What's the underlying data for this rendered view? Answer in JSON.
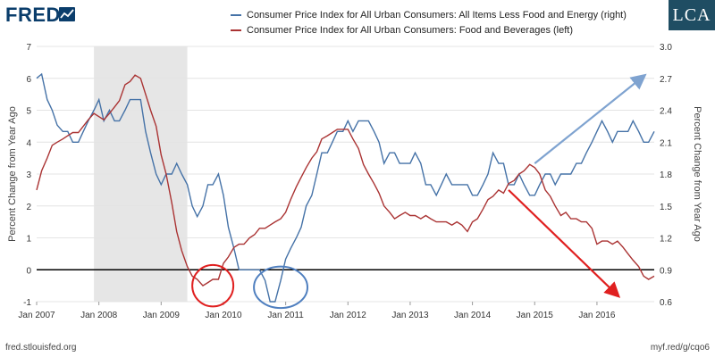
{
  "header": {
    "logo": "FRED",
    "logo_icon": "fred-chart-icon",
    "brand_badge": "LCA"
  },
  "footer": {
    "source": "fred.stlouisfed.org",
    "link": "myf.red/g/cqo6"
  },
  "chart_data": {
    "type": "line",
    "xlabel": "",
    "ylabel_left": "Percent Change from Year Ago",
    "ylabel_right": "Percent Change from Year Ago",
    "ylim_left": [
      -1,
      7
    ],
    "ylim_right": [
      0.6,
      3.0
    ],
    "yticks_left": [
      -1,
      0,
      1,
      2,
      3,
      4,
      5,
      6,
      7
    ],
    "yticks_right": [
      0.6,
      0.9,
      1.2,
      1.5,
      1.8,
      2.1,
      2.4,
      2.7,
      3.0
    ],
    "xlim": [
      2007.0,
      2016.92
    ],
    "xticks": [
      {
        "x": 2007.0,
        "label": "Jan 2007"
      },
      {
        "x": 2008.0,
        "label": "Jan 2008"
      },
      {
        "x": 2009.0,
        "label": "Jan 2009"
      },
      {
        "x": 2010.0,
        "label": "Jan 2010"
      },
      {
        "x": 2011.0,
        "label": "Jan 2011"
      },
      {
        "x": 2012.0,
        "label": "Jan 2012"
      },
      {
        "x": 2013.0,
        "label": "Jan 2013"
      },
      {
        "x": 2014.0,
        "label": "Jan 2014"
      },
      {
        "x": 2015.0,
        "label": "Jan 2015"
      },
      {
        "x": 2016.0,
        "label": "Jan 2016"
      }
    ],
    "recession": [
      2007.92,
      2009.42
    ],
    "zero_line": 0,
    "grid": "horizontal",
    "legend_position": "top",
    "series": [
      {
        "name": "Consumer Price Index for All Urban Consumers: All Items Less Food and Energy (right)",
        "axis": "right",
        "color": "#4572a7",
        "points": [
          [
            2007.0,
            2.7
          ],
          [
            2007.08,
            2.74
          ],
          [
            2007.17,
            2.5
          ],
          [
            2007.25,
            2.4
          ],
          [
            2007.33,
            2.26
          ],
          [
            2007.42,
            2.2
          ],
          [
            2007.5,
            2.2
          ],
          [
            2007.58,
            2.1
          ],
          [
            2007.67,
            2.1
          ],
          [
            2007.75,
            2.2
          ],
          [
            2007.83,
            2.3
          ],
          [
            2007.92,
            2.4
          ],
          [
            2008.0,
            2.5
          ],
          [
            2008.08,
            2.3
          ],
          [
            2008.17,
            2.4
          ],
          [
            2008.25,
            2.3
          ],
          [
            2008.33,
            2.3
          ],
          [
            2008.42,
            2.4
          ],
          [
            2008.5,
            2.5
          ],
          [
            2008.58,
            2.5
          ],
          [
            2008.67,
            2.5
          ],
          [
            2008.75,
            2.2
          ],
          [
            2008.83,
            2.0
          ],
          [
            2008.92,
            1.8
          ],
          [
            2009.0,
            1.7
          ],
          [
            2009.08,
            1.8
          ],
          [
            2009.17,
            1.8
          ],
          [
            2009.25,
            1.9
          ],
          [
            2009.33,
            1.8
          ],
          [
            2009.42,
            1.7
          ],
          [
            2009.5,
            1.5
          ],
          [
            2009.58,
            1.4
          ],
          [
            2009.67,
            1.5
          ],
          [
            2009.75,
            1.7
          ],
          [
            2009.83,
            1.7
          ],
          [
            2009.92,
            1.8
          ],
          [
            2010.0,
            1.6
          ],
          [
            2010.08,
            1.3
          ],
          [
            2010.17,
            1.1
          ],
          [
            2010.25,
            0.9
          ],
          [
            2010.33,
            0.9
          ],
          [
            2010.42,
            0.9
          ],
          [
            2010.5,
            0.9
          ],
          [
            2010.58,
            0.9
          ],
          [
            2010.67,
            0.8
          ],
          [
            2010.75,
            0.6
          ],
          [
            2010.83,
            0.6
          ],
          [
            2010.92,
            0.8
          ],
          [
            2011.0,
            1.0
          ],
          [
            2011.08,
            1.1
          ],
          [
            2011.17,
            1.2
          ],
          [
            2011.25,
            1.3
          ],
          [
            2011.33,
            1.5
          ],
          [
            2011.42,
            1.6
          ],
          [
            2011.5,
            1.8
          ],
          [
            2011.58,
            2.0
          ],
          [
            2011.67,
            2.0
          ],
          [
            2011.75,
            2.1
          ],
          [
            2011.83,
            2.2
          ],
          [
            2011.92,
            2.2
          ],
          [
            2012.0,
            2.3
          ],
          [
            2012.08,
            2.2
          ],
          [
            2012.17,
            2.3
          ],
          [
            2012.25,
            2.3
          ],
          [
            2012.33,
            2.3
          ],
          [
            2012.42,
            2.2
          ],
          [
            2012.5,
            2.1
          ],
          [
            2012.58,
            1.9
          ],
          [
            2012.67,
            2.0
          ],
          [
            2012.75,
            2.0
          ],
          [
            2012.83,
            1.9
          ],
          [
            2012.92,
            1.9
          ],
          [
            2013.0,
            1.9
          ],
          [
            2013.08,
            2.0
          ],
          [
            2013.17,
            1.9
          ],
          [
            2013.25,
            1.7
          ],
          [
            2013.33,
            1.7
          ],
          [
            2013.42,
            1.6
          ],
          [
            2013.5,
            1.7
          ],
          [
            2013.58,
            1.8
          ],
          [
            2013.67,
            1.7
          ],
          [
            2013.75,
            1.7
          ],
          [
            2013.83,
            1.7
          ],
          [
            2013.92,
            1.7
          ],
          [
            2014.0,
            1.6
          ],
          [
            2014.08,
            1.6
          ],
          [
            2014.17,
            1.7
          ],
          [
            2014.25,
            1.8
          ],
          [
            2014.33,
            2.0
          ],
          [
            2014.42,
            1.9
          ],
          [
            2014.5,
            1.9
          ],
          [
            2014.58,
            1.7
          ],
          [
            2014.67,
            1.7
          ],
          [
            2014.75,
            1.8
          ],
          [
            2014.83,
            1.7
          ],
          [
            2014.92,
            1.6
          ],
          [
            2015.0,
            1.6
          ],
          [
            2015.08,
            1.7
          ],
          [
            2015.17,
            1.8
          ],
          [
            2015.25,
            1.8
          ],
          [
            2015.33,
            1.7
          ],
          [
            2015.42,
            1.8
          ],
          [
            2015.5,
            1.8
          ],
          [
            2015.58,
            1.8
          ],
          [
            2015.67,
            1.9
          ],
          [
            2015.75,
            1.9
          ],
          [
            2015.83,
            2.0
          ],
          [
            2015.92,
            2.1
          ],
          [
            2016.0,
            2.2
          ],
          [
            2016.08,
            2.3
          ],
          [
            2016.17,
            2.2
          ],
          [
            2016.25,
            2.1
          ],
          [
            2016.33,
            2.2
          ],
          [
            2016.42,
            2.2
          ],
          [
            2016.5,
            2.2
          ],
          [
            2016.58,
            2.3
          ],
          [
            2016.67,
            2.2
          ],
          [
            2016.75,
            2.1
          ],
          [
            2016.83,
            2.1
          ],
          [
            2016.92,
            2.2
          ]
        ]
      },
      {
        "name": "Consumer Price Index for All Urban Consumers: Food and Beverages (left)",
        "axis": "left",
        "color": "#aa3333",
        "points": [
          [
            2007.0,
            2.5
          ],
          [
            2007.08,
            3.1
          ],
          [
            2007.17,
            3.5
          ],
          [
            2007.25,
            3.9
          ],
          [
            2007.33,
            4.0
          ],
          [
            2007.42,
            4.1
          ],
          [
            2007.5,
            4.2
          ],
          [
            2007.58,
            4.3
          ],
          [
            2007.67,
            4.3
          ],
          [
            2007.75,
            4.5
          ],
          [
            2007.83,
            4.7
          ],
          [
            2007.92,
            4.9
          ],
          [
            2008.0,
            4.8
          ],
          [
            2008.08,
            4.7
          ],
          [
            2008.17,
            4.9
          ],
          [
            2008.25,
            5.1
          ],
          [
            2008.33,
            5.3
          ],
          [
            2008.42,
            5.8
          ],
          [
            2008.5,
            5.9
          ],
          [
            2008.58,
            6.1
          ],
          [
            2008.67,
            6.0
          ],
          [
            2008.75,
            5.5
          ],
          [
            2008.83,
            5.0
          ],
          [
            2008.92,
            4.5
          ],
          [
            2009.0,
            3.6
          ],
          [
            2009.08,
            3.0
          ],
          [
            2009.17,
            2.1
          ],
          [
            2009.25,
            1.2
          ],
          [
            2009.33,
            0.6
          ],
          [
            2009.42,
            0.1
          ],
          [
            2009.5,
            -0.2
          ],
          [
            2009.58,
            -0.3
          ],
          [
            2009.67,
            -0.5
          ],
          [
            2009.75,
            -0.4
          ],
          [
            2009.83,
            -0.3
          ],
          [
            2009.92,
            -0.3
          ],
          [
            2010.0,
            0.2
          ],
          [
            2010.08,
            0.4
          ],
          [
            2010.17,
            0.7
          ],
          [
            2010.25,
            0.8
          ],
          [
            2010.33,
            0.8
          ],
          [
            2010.42,
            1.0
          ],
          [
            2010.5,
            1.1
          ],
          [
            2010.58,
            1.3
          ],
          [
            2010.67,
            1.3
          ],
          [
            2010.75,
            1.4
          ],
          [
            2010.83,
            1.5
          ],
          [
            2010.92,
            1.6
          ],
          [
            2011.0,
            1.8
          ],
          [
            2011.08,
            2.2
          ],
          [
            2011.17,
            2.6
          ],
          [
            2011.25,
            2.9
          ],
          [
            2011.33,
            3.2
          ],
          [
            2011.42,
            3.5
          ],
          [
            2011.5,
            3.7
          ],
          [
            2011.58,
            4.1
          ],
          [
            2011.67,
            4.2
          ],
          [
            2011.75,
            4.3
          ],
          [
            2011.83,
            4.4
          ],
          [
            2011.92,
            4.4
          ],
          [
            2012.0,
            4.4
          ],
          [
            2012.08,
            4.1
          ],
          [
            2012.17,
            3.8
          ],
          [
            2012.25,
            3.3
          ],
          [
            2012.33,
            3.0
          ],
          [
            2012.42,
            2.7
          ],
          [
            2012.5,
            2.4
          ],
          [
            2012.58,
            2.0
          ],
          [
            2012.67,
            1.8
          ],
          [
            2012.75,
            1.6
          ],
          [
            2012.83,
            1.7
          ],
          [
            2012.92,
            1.8
          ],
          [
            2013.0,
            1.7
          ],
          [
            2013.08,
            1.7
          ],
          [
            2013.17,
            1.6
          ],
          [
            2013.25,
            1.7
          ],
          [
            2013.33,
            1.6
          ],
          [
            2013.42,
            1.5
          ],
          [
            2013.5,
            1.5
          ],
          [
            2013.58,
            1.5
          ],
          [
            2013.67,
            1.4
          ],
          [
            2013.75,
            1.5
          ],
          [
            2013.83,
            1.4
          ],
          [
            2013.92,
            1.2
          ],
          [
            2014.0,
            1.5
          ],
          [
            2014.08,
            1.6
          ],
          [
            2014.17,
            1.9
          ],
          [
            2014.25,
            2.2
          ],
          [
            2014.33,
            2.3
          ],
          [
            2014.42,
            2.5
          ],
          [
            2014.5,
            2.4
          ],
          [
            2014.58,
            2.7
          ],
          [
            2014.67,
            2.8
          ],
          [
            2014.75,
            3.0
          ],
          [
            2014.83,
            3.1
          ],
          [
            2014.92,
            3.3
          ],
          [
            2015.0,
            3.2
          ],
          [
            2015.08,
            3.0
          ],
          [
            2015.17,
            2.5
          ],
          [
            2015.25,
            2.3
          ],
          [
            2015.33,
            2.0
          ],
          [
            2015.42,
            1.7
          ],
          [
            2015.5,
            1.8
          ],
          [
            2015.58,
            1.6
          ],
          [
            2015.67,
            1.6
          ],
          [
            2015.75,
            1.5
          ],
          [
            2015.83,
            1.5
          ],
          [
            2015.92,
            1.3
          ],
          [
            2016.0,
            0.8
          ],
          [
            2016.08,
            0.9
          ],
          [
            2016.17,
            0.9
          ],
          [
            2016.25,
            0.8
          ],
          [
            2016.33,
            0.9
          ],
          [
            2016.42,
            0.7
          ],
          [
            2016.5,
            0.5
          ],
          [
            2016.58,
            0.3
          ],
          [
            2016.67,
            0.1
          ],
          [
            2016.75,
            -0.2
          ],
          [
            2016.83,
            -0.3
          ],
          [
            2016.92,
            -0.2
          ]
        ]
      }
    ],
    "annotations": [
      {
        "type": "ellipse",
        "color": "#e02020",
        "cx": 2009.83,
        "cy_left": -0.5,
        "rx": 0.33,
        "ry_left": 0.65
      },
      {
        "type": "ellipse",
        "color": "#4f7fbf",
        "cx": 2010.92,
        "cy_left": -0.55,
        "rx": 0.43,
        "ry_left": 0.65
      },
      {
        "type": "arrow",
        "color": "#7fa3d0",
        "from": [
          2015.0,
          1.9
        ],
        "to": [
          2016.75,
          2.72
        ],
        "axis": "right"
      },
      {
        "type": "arrow",
        "color": "#e02020",
        "from": [
          2014.58,
          2.5
        ],
        "to": [
          2016.33,
          -0.8
        ],
        "axis": "left"
      }
    ]
  }
}
